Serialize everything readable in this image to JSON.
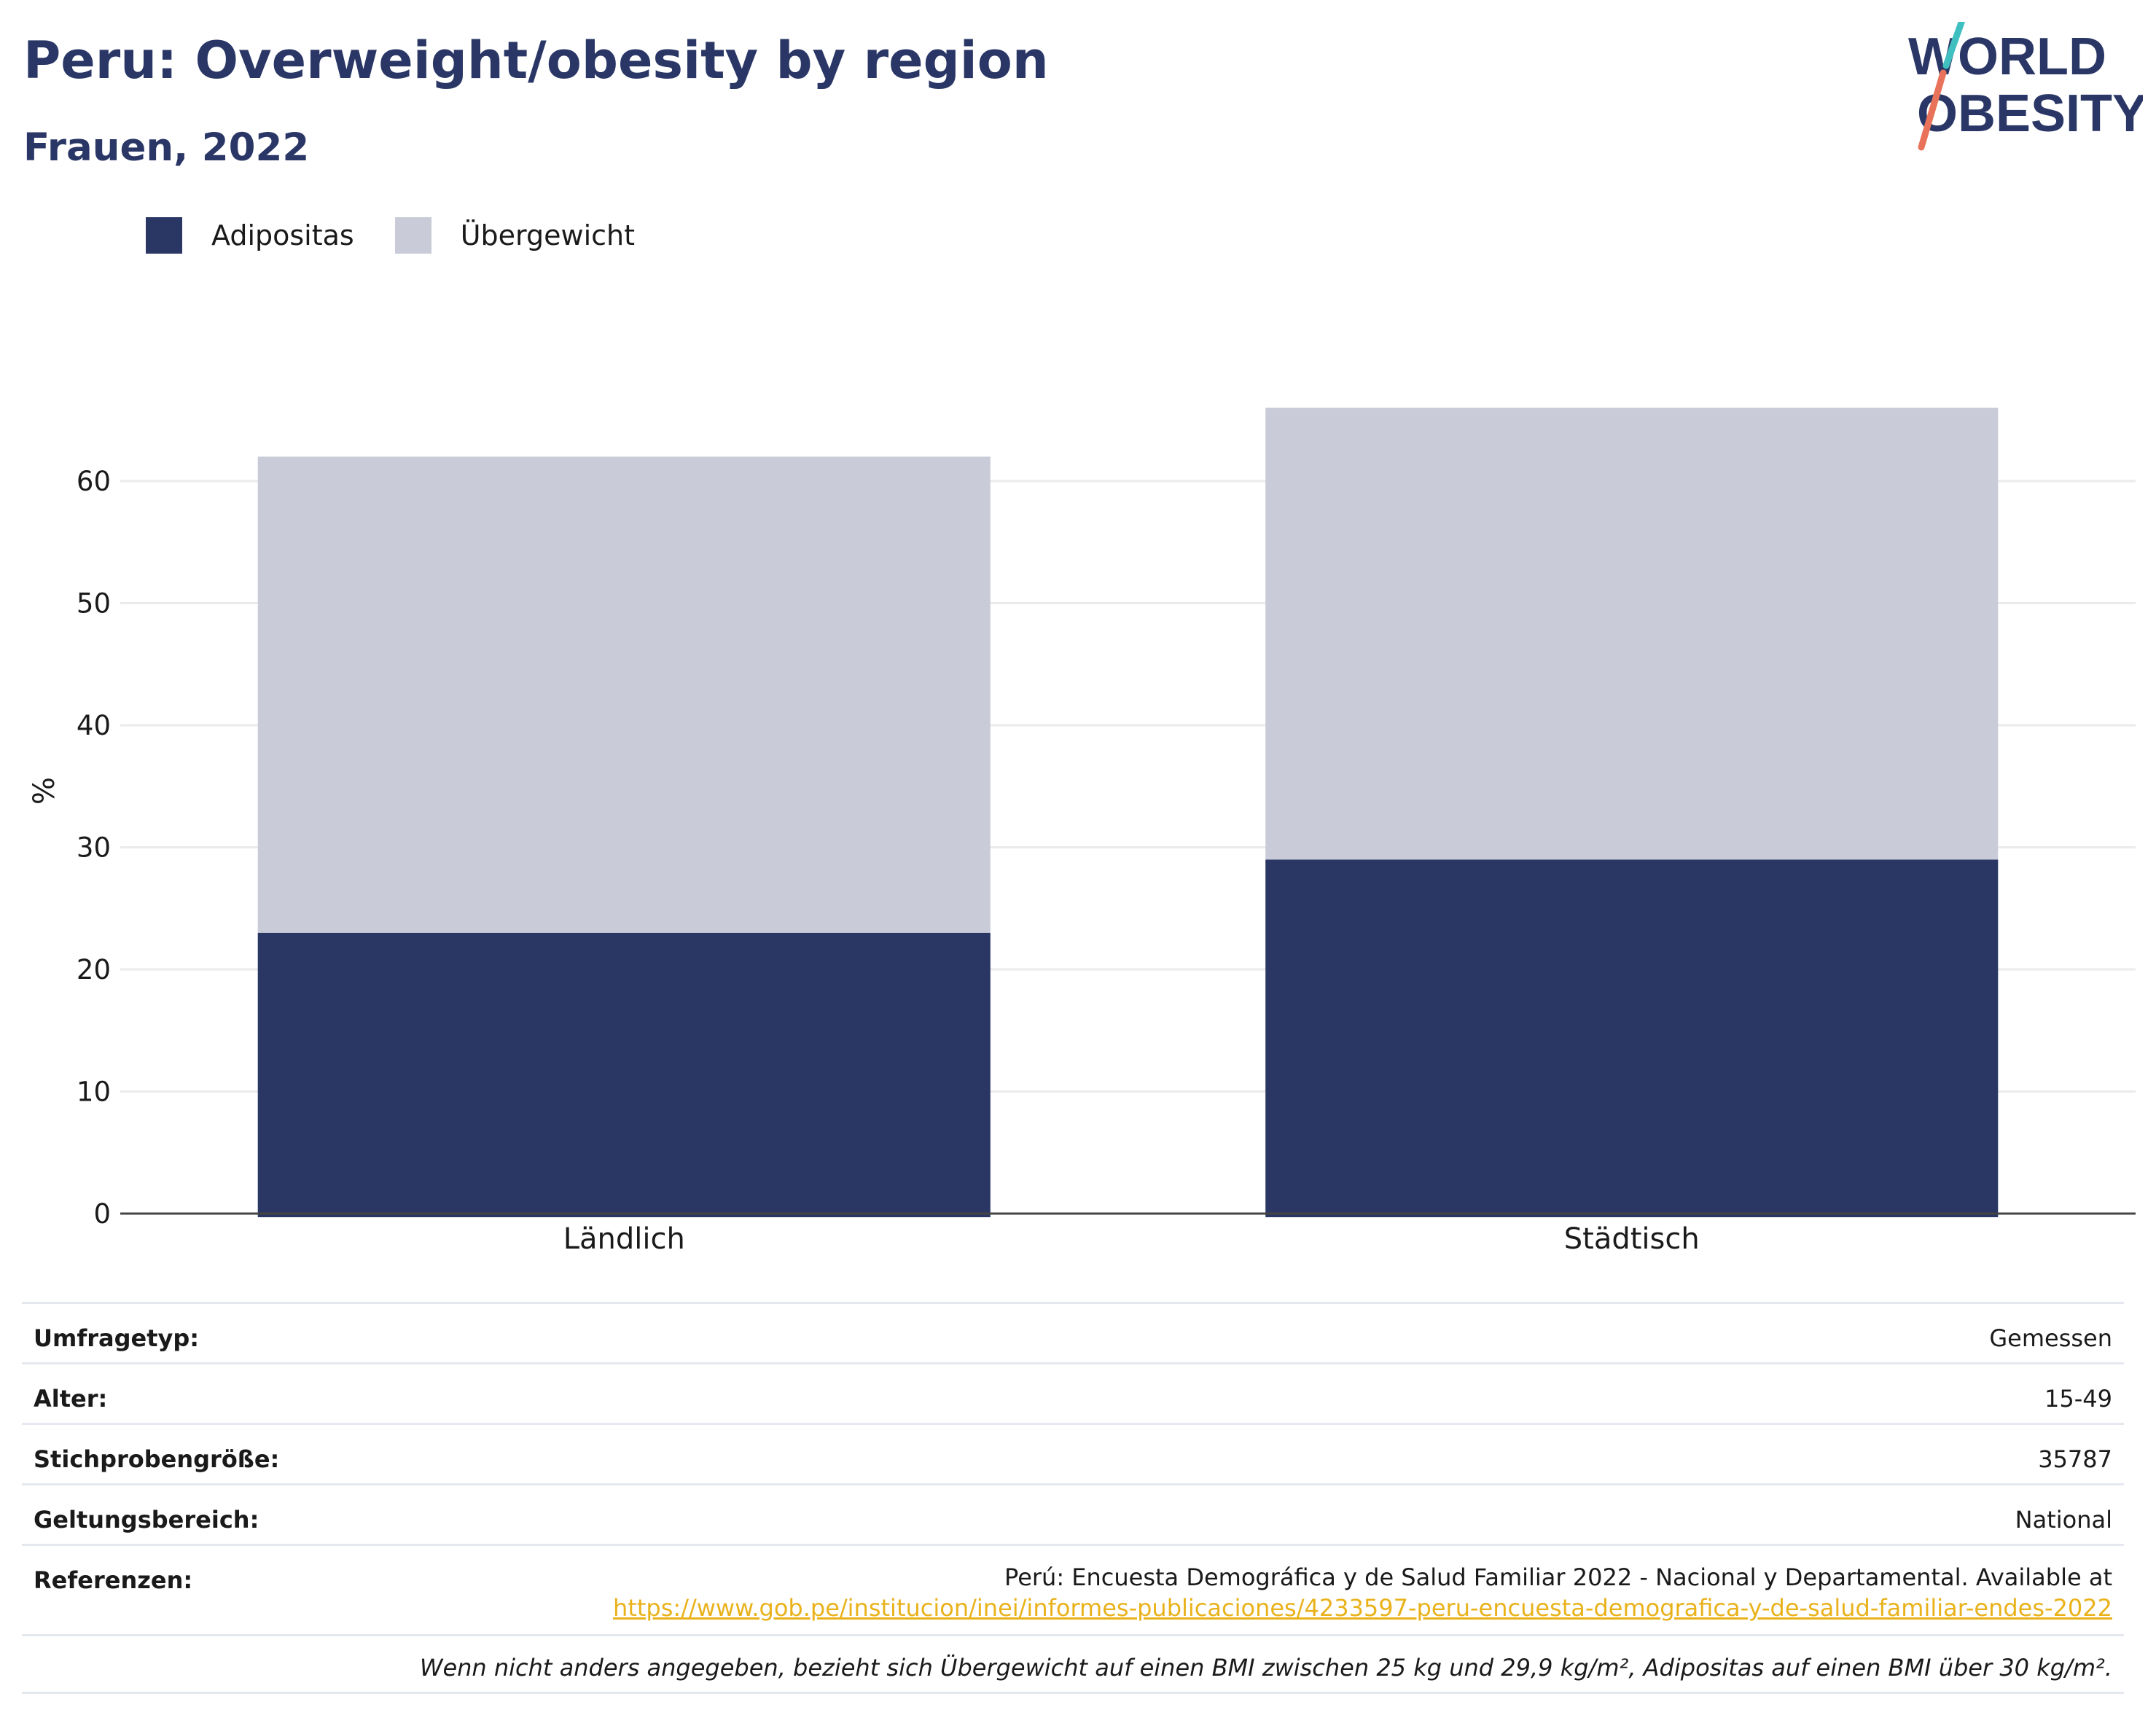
{
  "header": {
    "title": "Peru: Overweight/obesity by region",
    "subtitle": "Frauen, 2022"
  },
  "logo": {
    "line1": "WORLD",
    "line2": "OBESITY",
    "colors": {
      "text": "#2a3766",
      "slash_top": "#3fbfbf",
      "slash_bottom": "#e8735a"
    }
  },
  "legend": [
    {
      "label": "Adipositas",
      "color": "#2a3764"
    },
    {
      "label": "Übergewicht",
      "color": "#c9ccd8"
    }
  ],
  "chart_data": {
    "type": "bar",
    "stacked": true,
    "categories": [
      "Ländlich",
      "Städtisch"
    ],
    "series": [
      {
        "name": "Adipositas",
        "values": [
          23,
          29
        ],
        "color": "#2a3764"
      },
      {
        "name": "Übergewicht",
        "values": [
          39,
          37
        ],
        "color": "#c9ccd8"
      }
    ],
    "ylabel": "%",
    "ylim": [
      0,
      70
    ],
    "yticks": [
      0,
      10,
      20,
      30,
      40,
      50,
      60
    ],
    "grid": true
  },
  "info": {
    "rows": [
      {
        "key": "Umfragetyp:",
        "value": "Gemessen"
      },
      {
        "key": "Alter:",
        "value": "15-49"
      },
      {
        "key": "Stichprobengröße:",
        "value": "35787"
      },
      {
        "key": "Geltungsbereich:",
        "value": "National"
      }
    ],
    "references_key": "Referenzen:",
    "references_text": "Perú: Encuesta Demográfica y de Salud Familiar 2022 - Nacional y Departamental. Available at",
    "references_link": "https://www.gob.pe/institucion/inei/informes-publicaciones/4233597-peru-encuesta-demografica-y-de-salud-familiar-endes-2022",
    "footnote": "Wenn nicht anders angegeben, bezieht sich Übergewicht auf einen BMI zwischen 25 kg und 29,9 kg/m², Adipositas auf einen BMI über 30 kg/m²."
  }
}
